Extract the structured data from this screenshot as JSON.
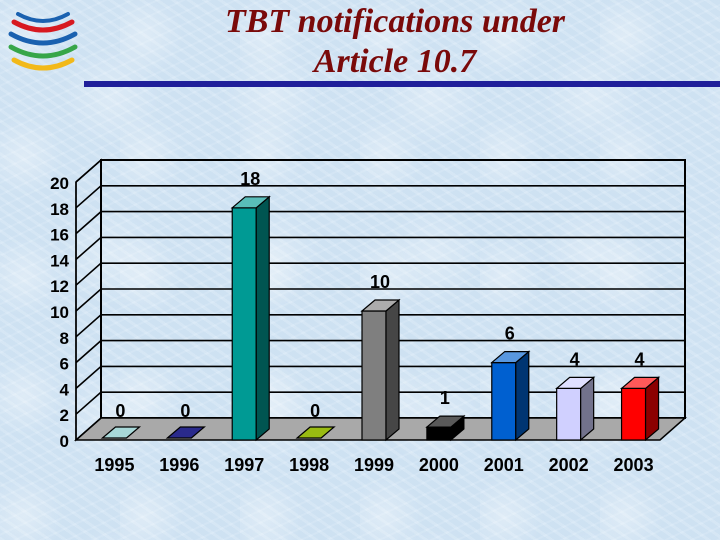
{
  "header": {
    "title_line1": "TBT notifications under",
    "title_line2": "Article 10.7",
    "logo": "wto-logo"
  },
  "colors": {
    "title": "#7a0a0a",
    "rule": "#1f1f9a",
    "logo_stripes": [
      "#d71920",
      "#1a61b0",
      "#37a649",
      "#f2b91a"
    ]
  },
  "chart_data": {
    "type": "bar",
    "title": "",
    "xlabel": "",
    "ylabel": "",
    "three_d": true,
    "grid": true,
    "legend": "none",
    "ylim": [
      0,
      20
    ],
    "yticks": [
      "0",
      "2",
      "4",
      "6",
      "8",
      "10",
      "12",
      "14",
      "16",
      "18",
      "20"
    ],
    "categories": [
      "1995",
      "1996",
      "1997",
      "1998",
      "1999",
      "2000",
      "2001",
      "2002",
      "2003"
    ],
    "values": [
      0,
      0,
      18,
      0,
      10,
      1,
      6,
      4,
      4
    ],
    "data_labels": [
      "0",
      "0",
      "18",
      "0",
      "10",
      "1",
      "6",
      "4",
      "4"
    ],
    "colors": [
      "#a8d8d8",
      "#2a2a8c",
      "#009a94",
      "#99bb11",
      "#7f7f7f",
      "#000000",
      "#0060d0",
      "#d0d0ff",
      "#ff0000"
    ]
  }
}
